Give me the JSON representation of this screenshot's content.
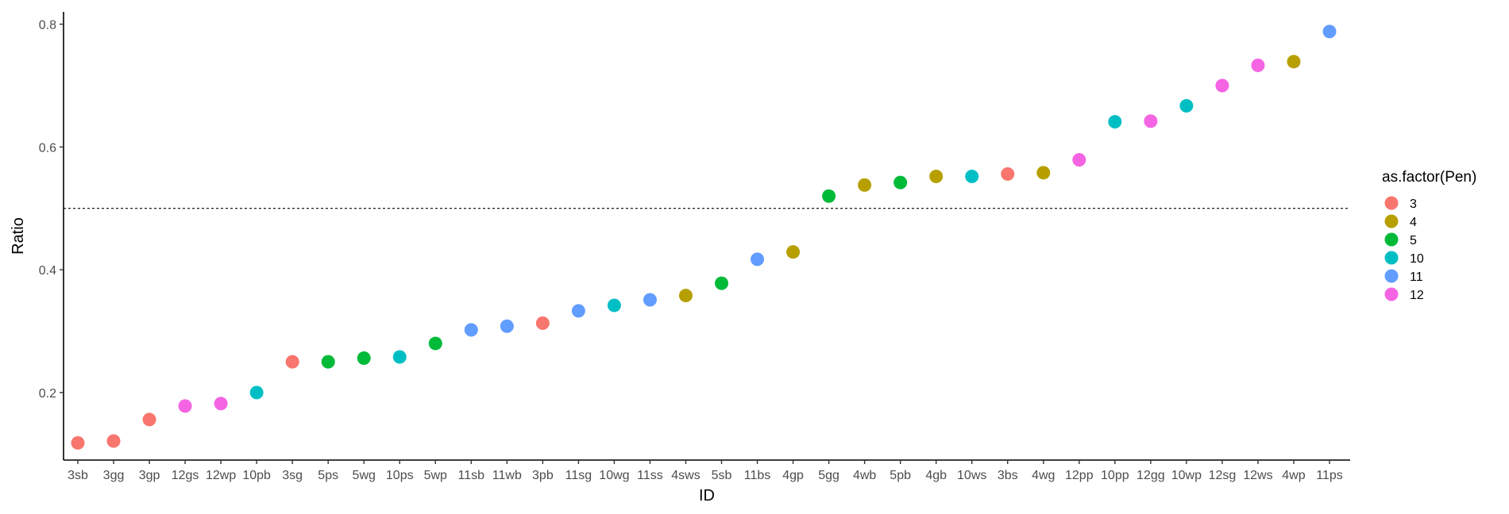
{
  "chart_data": {
    "type": "scatter",
    "xlabel": "ID",
    "ylabel": "Ratio",
    "ylim": [
      0.09,
      0.82
    ],
    "yticks": [
      0.2,
      0.4,
      0.6,
      0.8
    ],
    "reference_line": 0.5,
    "grid": false,
    "legend": {
      "title": "as.factor(Pen)",
      "placement": "right",
      "entries": [
        {
          "label": "3",
          "color": "#F8766D"
        },
        {
          "label": "4",
          "color": "#B79F00"
        },
        {
          "label": "5",
          "color": "#00BA38"
        },
        {
          "label": "10",
          "color": "#00BFC4"
        },
        {
          "label": "11",
          "color": "#619CFF"
        },
        {
          "label": "12",
          "color": "#F564E3"
        }
      ]
    },
    "points": [
      {
        "id": "3sb",
        "pen": "3",
        "ratio": 0.118
      },
      {
        "id": "3gg",
        "pen": "3",
        "ratio": 0.121
      },
      {
        "id": "3gp",
        "pen": "3",
        "ratio": 0.156
      },
      {
        "id": "12gs",
        "pen": "12",
        "ratio": 0.178
      },
      {
        "id": "12wp",
        "pen": "12",
        "ratio": 0.182
      },
      {
        "id": "10pb",
        "pen": "10",
        "ratio": 0.2
      },
      {
        "id": "3sg",
        "pen": "3",
        "ratio": 0.25
      },
      {
        "id": "5ps",
        "pen": "5",
        "ratio": 0.25
      },
      {
        "id": "5wg",
        "pen": "5",
        "ratio": 0.256
      },
      {
        "id": "10ps",
        "pen": "10",
        "ratio": 0.258
      },
      {
        "id": "5wp",
        "pen": "5",
        "ratio": 0.28
      },
      {
        "id": "11sb",
        "pen": "11",
        "ratio": 0.302
      },
      {
        "id": "11wb",
        "pen": "11",
        "ratio": 0.308
      },
      {
        "id": "3pb",
        "pen": "3",
        "ratio": 0.313
      },
      {
        "id": "11sg",
        "pen": "11",
        "ratio": 0.333
      },
      {
        "id": "10wg",
        "pen": "10",
        "ratio": 0.342
      },
      {
        "id": "11ss",
        "pen": "11",
        "ratio": 0.351
      },
      {
        "id": "4sws",
        "pen": "4",
        "ratio": 0.358
      },
      {
        "id": "5sb",
        "pen": "5",
        "ratio": 0.378
      },
      {
        "id": "11bs",
        "pen": "11",
        "ratio": 0.417
      },
      {
        "id": "4gp",
        "pen": "4",
        "ratio": 0.429
      },
      {
        "id": "5gg",
        "pen": "5",
        "ratio": 0.52
      },
      {
        "id": "4wb",
        "pen": "4",
        "ratio": 0.538
      },
      {
        "id": "5pb",
        "pen": "5",
        "ratio": 0.542
      },
      {
        "id": "4gb",
        "pen": "4",
        "ratio": 0.552
      },
      {
        "id": "10ws",
        "pen": "10",
        "ratio": 0.552
      },
      {
        "id": "3bs",
        "pen": "3",
        "ratio": 0.556
      },
      {
        "id": "4wg",
        "pen": "4",
        "ratio": 0.558
      },
      {
        "id": "12pp",
        "pen": "12",
        "ratio": 0.579
      },
      {
        "id": "10pp",
        "pen": "10",
        "ratio": 0.641
      },
      {
        "id": "12gg",
        "pen": "12",
        "ratio": 0.642
      },
      {
        "id": "10wp",
        "pen": "10",
        "ratio": 0.667
      },
      {
        "id": "12sg",
        "pen": "12",
        "ratio": 0.7
      },
      {
        "id": "12ws",
        "pen": "12",
        "ratio": 0.733
      },
      {
        "id": "4wp",
        "pen": "4",
        "ratio": 0.739
      },
      {
        "id": "11ps",
        "pen": "11",
        "ratio": 0.788
      }
    ]
  }
}
